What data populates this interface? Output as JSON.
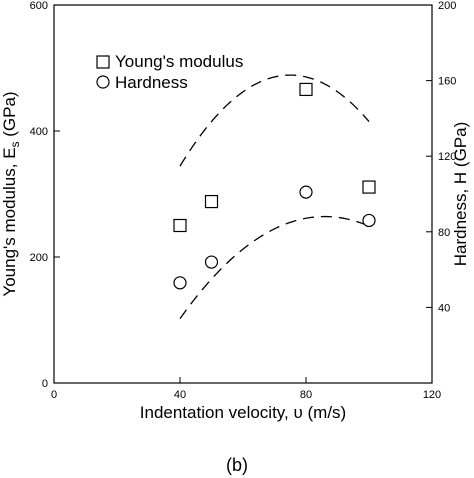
{
  "chart_data": {
    "type": "scatter",
    "x_label": "Indentation velocity, υ (m/s)",
    "y_label_left": "Young's modulus, E",
    "y_label_left_sub": "s",
    "y_label_left_unit": " (GPa)",
    "y_label_right": "Hardness, H",
    "y_label_right_unit": " (GPa)",
    "panel_label": "(b)",
    "xlim": [
      0,
      120
    ],
    "ylim_left": [
      0,
      600
    ],
    "ylim_right": [
      0,
      200
    ],
    "x_ticks": [
      0,
      40,
      80,
      120
    ],
    "x_tick_labels": [
      "0",
      "40",
      "80",
      "120"
    ],
    "y_ticks_left": [
      0,
      200,
      400,
      600
    ],
    "y_tick_labels_left": [
      "0",
      "200",
      "400",
      "600"
    ],
    "y_ticks_right": [
      40,
      80,
      120,
      160,
      200
    ],
    "y_tick_labels_right": [
      "40",
      "80",
      "120",
      "160",
      "200"
    ],
    "legend": {
      "position": "top-left",
      "entries": [
        {
          "marker": "square",
          "label": "Young's modulus"
        },
        {
          "marker": "circle",
          "label": "Hardness"
        }
      ]
    },
    "series": [
      {
        "name": "Young's modulus",
        "axis": "left",
        "marker": "square",
        "x": [
          40,
          50,
          80,
          100
        ],
        "y": [
          250,
          288,
          466,
          311
        ],
        "fit": {
          "type": "quadratic",
          "x_range": [
            40,
            100
          ],
          "coefficients": [
            -0.118,
            17.7,
            -175
          ]
        }
      },
      {
        "name": "Hardness",
        "axis": "right",
        "marker": "circle",
        "x": [
          40,
          50,
          80,
          100
        ],
        "y": [
          53,
          64,
          101,
          86
        ],
        "fit": {
          "type": "quadratic",
          "x_range": [
            40,
            100
          ],
          "coefficients": [
            -0.0256,
            4.4,
            -101
          ]
        }
      }
    ]
  }
}
